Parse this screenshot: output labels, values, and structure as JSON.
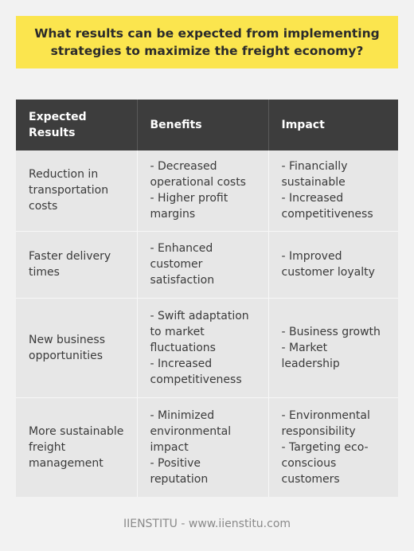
{
  "title": "What results can be expected from implementing strategies to maximize the freight economy?",
  "table": {
    "headers": [
      "Expected Results",
      "Benefits",
      "Impact"
    ],
    "rows": [
      {
        "result": "Reduction in transportation costs",
        "benefits": [
          "- Decreased operational costs",
          "- Higher profit margins"
        ],
        "impact": [
          "- Financially sustainable",
          "- Increased competitiveness"
        ]
      },
      {
        "result": "Faster delivery times",
        "benefits": [
          "- Enhanced customer satisfaction"
        ],
        "impact": [
          "- Improved customer loyalty"
        ]
      },
      {
        "result": "New business opportunities",
        "benefits": [
          "- Swift adaptation to market fluctuations",
          "- Increased competitiveness"
        ],
        "impact": [
          "- Business growth",
          "- Market leadership"
        ]
      },
      {
        "result": "More sustainable freight management",
        "benefits": [
          "- Minimized environmental impact",
          "- Positive reputation"
        ],
        "impact": [
          "- Environmental responsibility",
          "- Targeting eco-conscious customers"
        ]
      }
    ]
  },
  "footer": "IIENSTITU - www.iienstitu.com"
}
